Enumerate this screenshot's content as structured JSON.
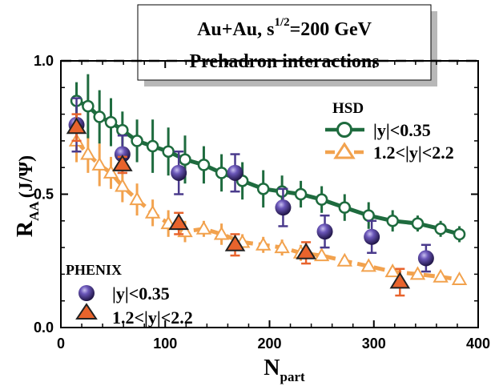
{
  "chart_data": {
    "type": "scatter",
    "title_line1_prefix": "Au+Au, s",
    "title_line1_sup": "1/2",
    "title_line1_suffix": "=200 GeV",
    "title_line2": "Prehadron interactions",
    "xlabel_main": "N",
    "xlabel_sub": "part",
    "ylabel_main": "R",
    "ylabel_sub": "AA",
    "ylabel_tail": "(J/Ψ)",
    "xlim": [
      0,
      400
    ],
    "ylim": [
      0.0,
      1.0
    ],
    "x_ticks": [
      0,
      100,
      200,
      300,
      400
    ],
    "x_tick_labels": [
      "0",
      "100",
      "200",
      "300",
      "400"
    ],
    "y_ticks": [
      0.0,
      0.5,
      1.0
    ],
    "y_tick_labels": [
      "0.0",
      "0.5",
      "1.0"
    ],
    "reference_line": 1.0,
    "hsd_legend_title": "HSD",
    "phenix_legend_title": "PHENIX",
    "colors": {
      "hsd_mid": "#1e6b3e",
      "hsd_fwd": "#f2a24e",
      "phenix_mid": "#4a3a8c",
      "phenix_fwd": "#e8632c",
      "frame": "#000000"
    },
    "series": [
      {
        "name": "|y|<0.35",
        "group": "HSD",
        "style": "line-open-circle",
        "x": [
          15,
          26,
          37,
          48,
          59,
          73,
          88,
          103,
          119,
          137,
          154,
          174,
          194,
          212,
          230,
          250,
          272,
          295,
          318,
          342,
          364,
          382
        ],
        "y": [
          0.85,
          0.83,
          0.79,
          0.77,
          0.74,
          0.7,
          0.68,
          0.66,
          0.63,
          0.61,
          0.58,
          0.55,
          0.52,
          0.51,
          0.5,
          0.48,
          0.45,
          0.42,
          0.4,
          0.39,
          0.37,
          0.35
        ],
        "err": [
          0.07,
          0.12,
          0.1,
          0.09,
          0.07,
          0.08,
          0.1,
          0.09,
          0.09,
          0.07,
          0.07,
          0.07,
          0.07,
          0.06,
          0.05,
          0.05,
          0.05,
          0.05,
          0.04,
          0.03,
          0.03,
          0.03
        ]
      },
      {
        "name": "1.2<|y|<2.2",
        "group": "HSD",
        "style": "dashed-open-triangle",
        "x": [
          15,
          26,
          37,
          48,
          59,
          73,
          88,
          103,
          119,
          137,
          154,
          174,
          194,
          212,
          230,
          250,
          272,
          295,
          318,
          342,
          364,
          382
        ],
        "y": [
          0.7,
          0.65,
          0.61,
          0.58,
          0.53,
          0.48,
          0.43,
          0.39,
          0.36,
          0.37,
          0.35,
          0.32,
          0.31,
          0.3,
          0.28,
          0.27,
          0.25,
          0.23,
          0.21,
          0.2,
          0.19,
          0.18
        ],
        "err": [
          0.08,
          0.07,
          0.08,
          0.06,
          0.06,
          0.06,
          0.05,
          0.05,
          0.04,
          0.03,
          0.04,
          0.03,
          0.03,
          0.03,
          0.03,
          0.02,
          0.02,
          0.02,
          0.02,
          0.02,
          0.02,
          0.02
        ]
      },
      {
        "name": "|y|<0.35",
        "group": "PHENIX",
        "style": "filled-sphere",
        "x": [
          15,
          59,
          113,
          167,
          213,
          253,
          298,
          350
        ],
        "y": [
          0.76,
          0.65,
          0.58,
          0.58,
          0.45,
          0.36,
          0.34,
          0.26
        ],
        "err": [
          0.1,
          0.07,
          0.08,
          0.07,
          0.07,
          0.06,
          0.06,
          0.05
        ]
      },
      {
        "name": "1.2<|y|<2.2",
        "group": "PHENIX",
        "style": "filled-triangle",
        "x": [
          15,
          59,
          113,
          167,
          235,
          325
        ],
        "y": [
          0.75,
          0.61,
          0.39,
          0.31,
          0.28,
          0.17
        ],
        "err": [
          0.05,
          0.03,
          0.04,
          0.04,
          0.04,
          0.05
        ]
      }
    ]
  }
}
